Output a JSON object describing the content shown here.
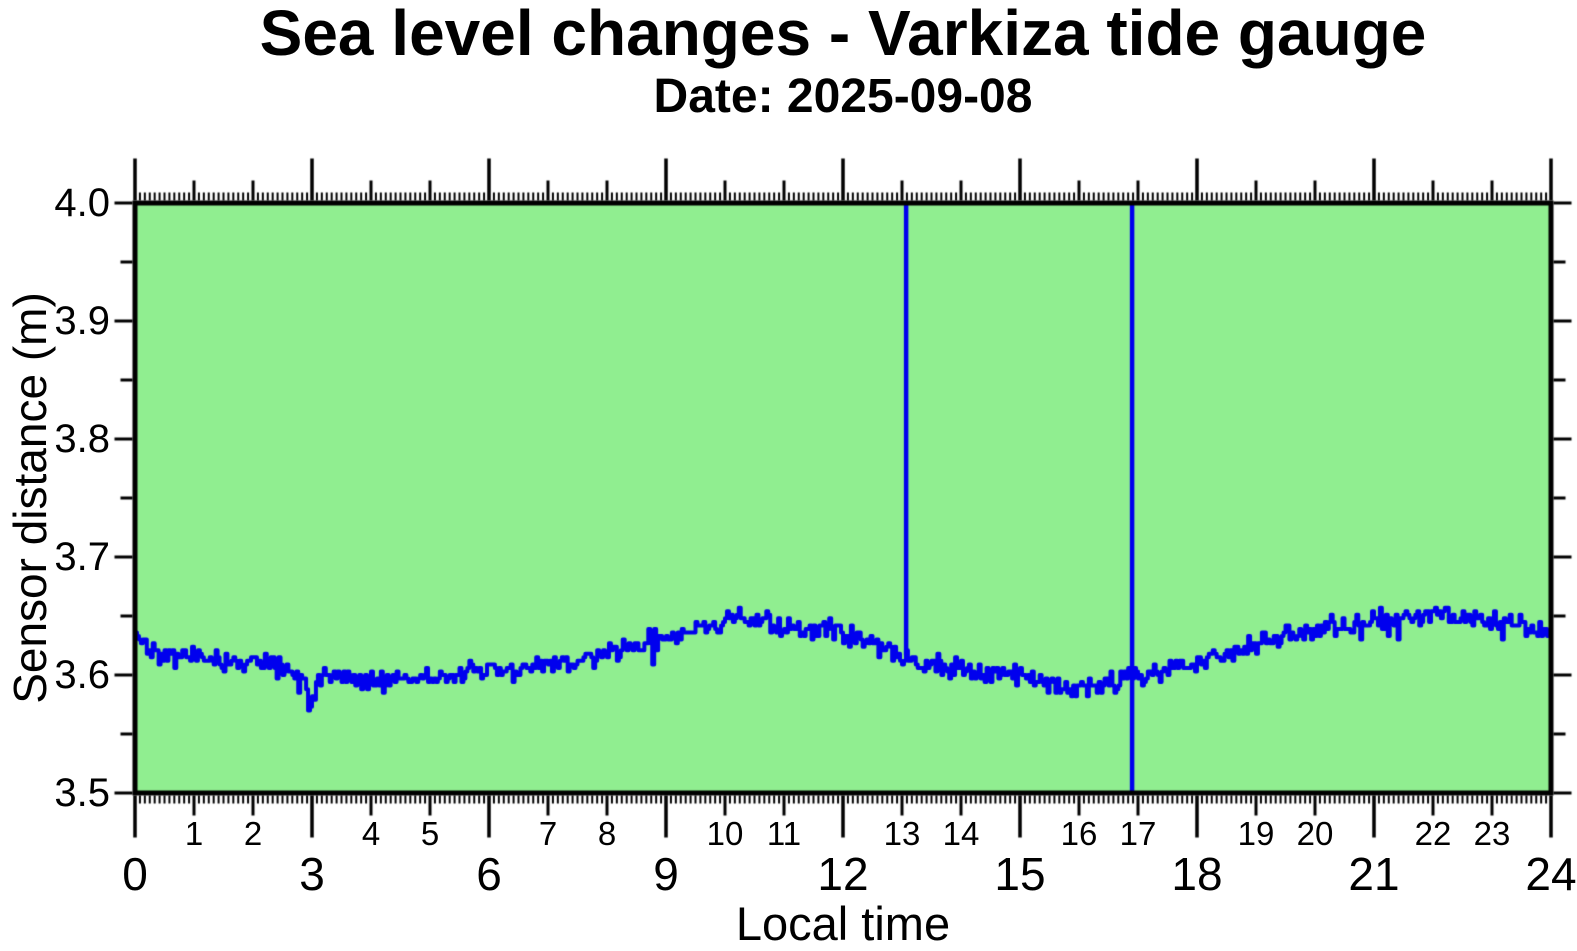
{
  "header": {
    "title": "Sea level changes - Varkiza tide gauge",
    "subtitle": "Date: 2025-09-08"
  },
  "chart_data": {
    "type": "line",
    "title": "Sea level changes - Varkiza tide gauge",
    "subtitle": "Date: 2025-09-08",
    "xlabel": "Local time",
    "ylabel": "Sensor distance (m)",
    "xlim": [
      0,
      24
    ],
    "ylim": [
      3.5,
      4.0
    ],
    "grid": false,
    "legend": false,
    "plot_bg_color": "#90EE90",
    "frame_color": "#000000",
    "line_color": "#0000EE",
    "y_tick_labels": [
      "4.0",
      "3.9",
      "3.8",
      "3.7",
      "3.6",
      "3.5"
    ],
    "y_major_tick_interval": 0.1,
    "y_minor_tick_interval": 0.05,
    "x_major_tick_interval_hours": 3,
    "x_medium_tick_interval_hours": 1,
    "x_minor_tick_interval_minutes": 5,
    "x_hour_tick_labels": [
      "1",
      "2",
      "4",
      "5",
      "7",
      "8",
      "10",
      "11",
      "13",
      "14",
      "16",
      "17",
      "19",
      "20",
      "22",
      "23"
    ],
    "x_3hour_tick_labels": [
      "0",
      "3",
      "6",
      "9",
      "12",
      "15",
      "18",
      "21",
      "24"
    ],
    "series": [
      {
        "name": "sensor-distance",
        "color": "#0000EE",
        "sample_interval_minutes": 2,
        "noise_amplitude_m": 0.011,
        "quantization_m": 0.003,
        "seed": 42,
        "trend_points_hour_value": [
          [
            0.0,
            3.636
          ],
          [
            0.2,
            3.625
          ],
          [
            0.5,
            3.617
          ],
          [
            1.0,
            3.615
          ],
          [
            1.5,
            3.612
          ],
          [
            2.0,
            3.61
          ],
          [
            2.5,
            3.606
          ],
          [
            2.88,
            3.598
          ],
          [
            2.95,
            3.562
          ],
          [
            3.05,
            3.595
          ],
          [
            3.5,
            3.597
          ],
          [
            4.0,
            3.595
          ],
          [
            4.5,
            3.596
          ],
          [
            5.0,
            3.598
          ],
          [
            5.5,
            3.601
          ],
          [
            6.0,
            3.603
          ],
          [
            6.5,
            3.605
          ],
          [
            7.0,
            3.608
          ],
          [
            7.5,
            3.612
          ],
          [
            8.0,
            3.618
          ],
          [
            8.5,
            3.626
          ],
          [
            9.0,
            3.632
          ],
          [
            9.5,
            3.639
          ],
          [
            10.0,
            3.645
          ],
          [
            10.3,
            3.648
          ],
          [
            10.7,
            3.644
          ],
          [
            11.0,
            3.641
          ],
          [
            11.5,
            3.639
          ],
          [
            12.0,
            3.634
          ],
          [
            12.5,
            3.627
          ],
          [
            13.0,
            3.617
          ],
          [
            13.3,
            3.61
          ],
          [
            14.0,
            3.606
          ],
          [
            14.5,
            3.602
          ],
          [
            15.0,
            3.599
          ],
          [
            15.5,
            3.594
          ],
          [
            15.8,
            3.588
          ],
          [
            16.2,
            3.591
          ],
          [
            16.6,
            3.593
          ],
          [
            16.9,
            3.598
          ],
          [
            17.3,
            3.603
          ],
          [
            18.0,
            3.61
          ],
          [
            18.5,
            3.617
          ],
          [
            19.0,
            3.625
          ],
          [
            19.5,
            3.633
          ],
          [
            20.0,
            3.64
          ],
          [
            20.5,
            3.643
          ],
          [
            21.0,
            3.646
          ],
          [
            21.5,
            3.649
          ],
          [
            22.0,
            3.651
          ],
          [
            22.3,
            3.653
          ],
          [
            22.7,
            3.649
          ],
          [
            23.0,
            3.646
          ],
          [
            23.5,
            3.641
          ],
          [
            24.0,
            3.634
          ]
        ]
      }
    ],
    "spike_events": [
      {
        "hour": 13.07,
        "from_m": 4.0,
        "to_m": 3.617
      },
      {
        "hour": 16.9,
        "from_m": 4.0,
        "to_m": 3.5
      }
    ]
  }
}
